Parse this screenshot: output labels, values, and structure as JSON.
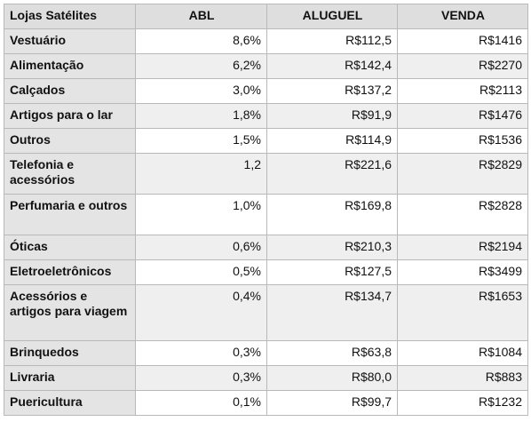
{
  "table": {
    "headers": [
      "Lojas Satélites",
      "ABL",
      "ALUGUEL",
      "VENDA"
    ],
    "rows": [
      {
        "category": "Vestuário",
        "abl": "8,6%",
        "aluguel": "R$112,5",
        "venda": "R$1416"
      },
      {
        "category": "Alimentação",
        "abl": "6,2%",
        "aluguel": "R$142,4",
        "venda": "R$2270"
      },
      {
        "category": "Calçados",
        "abl": "3,0%",
        "aluguel": "R$137,2",
        "venda": "R$2113"
      },
      {
        "category": "Artigos para o lar",
        "abl": "1,8%",
        "aluguel": "R$91,9",
        "venda": "R$1476"
      },
      {
        "category": "Outros",
        "abl": "1,5%",
        "aluguel": "R$114,9",
        "venda": "R$1536"
      },
      {
        "category": "Telefonia e acessórios",
        "abl": "1,2",
        "aluguel": "R$221,6",
        "venda": "R$2829"
      },
      {
        "category": "Perfumaria e outros",
        "abl": "1,0%",
        "aluguel": "R$169,8",
        "venda": "R$2828"
      },
      {
        "category": "Óticas",
        "abl": "0,6%",
        "aluguel": "R$210,3",
        "venda": "R$2194"
      },
      {
        "category": "Eletroeletrônicos",
        "abl": "0,5%",
        "aluguel": "R$127,5",
        "venda": "R$3499"
      },
      {
        "category": "Acessórios e artigos para viagem",
        "abl": "0,4%",
        "aluguel": "R$134,7",
        "venda": "R$1653"
      },
      {
        "category": "Brinquedos",
        "abl": "0,3%",
        "aluguel": "R$63,8",
        "venda": "R$1084"
      },
      {
        "category": "Livraria",
        "abl": "0,3%",
        "aluguel": "R$80,0",
        "venda": "R$883"
      },
      {
        "category": "Puericultura",
        "abl": "0,1%",
        "aluguel": "R$99,7",
        "venda": "R$1232"
      }
    ]
  },
  "colors": {
    "header_bg": "#dedede",
    "category_bg": "#e4e4e4",
    "row_alt_bg": "#efefef",
    "border": "#b9b9b9"
  }
}
